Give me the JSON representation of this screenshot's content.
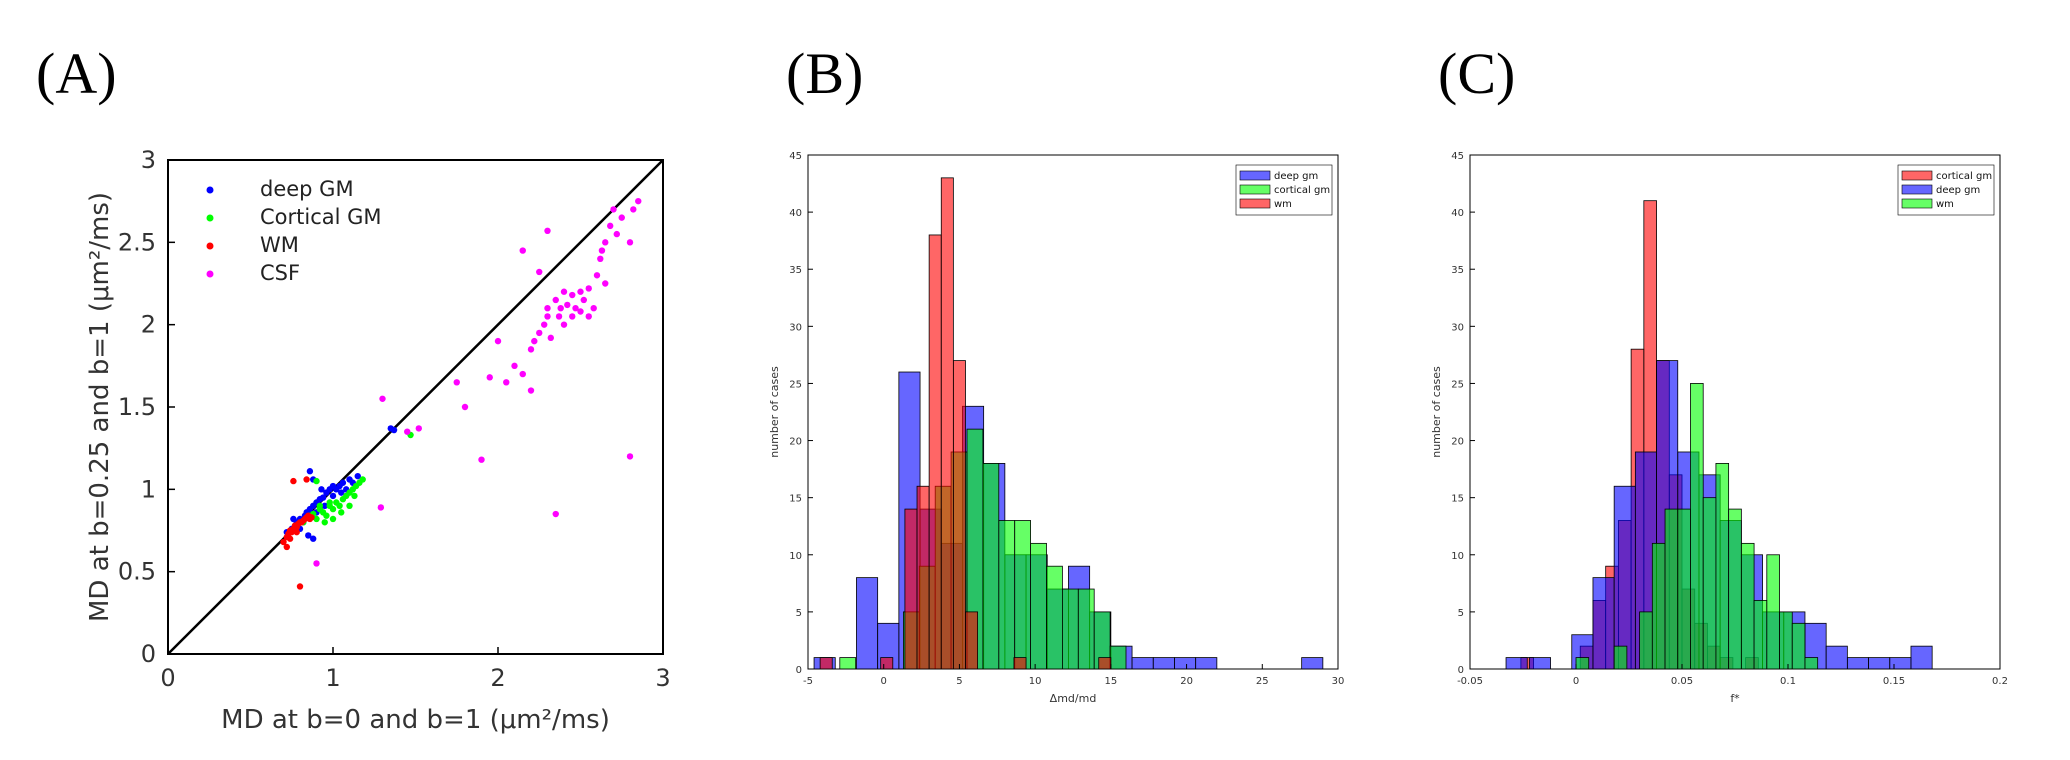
{
  "panels": {
    "a": "(A)",
    "b": "(B)",
    "c": "(C)"
  },
  "colors": {
    "deep": "#0000ff",
    "cortical": "#00ff00",
    "wm": "#ff0000",
    "csf": "#ff00ff"
  },
  "chart_data": [
    {
      "type": "scatter",
      "xlabel": "MD at b=0 and b=1 (μm²/ms)",
      "ylabel": "MD at b=0.25 and b=1 (μm²/ms)",
      "xlim": [
        0,
        3
      ],
      "ylim": [
        0,
        3
      ],
      "xticks": [
        "0",
        "1",
        "2",
        "3"
      ],
      "yticks": [
        "0",
        "0.5",
        "1",
        "1.5",
        "2",
        "2.5",
        "3"
      ],
      "identity_line": true,
      "legend_position": "top-left",
      "series": [
        {
          "name": "deep GM",
          "color": "#0000ff",
          "points": [
            [
              0.72,
              0.74
            ],
            [
              0.75,
              0.76
            ],
            [
              0.78,
              0.8
            ],
            [
              0.8,
              0.82
            ],
            [
              0.82,
              0.8
            ],
            [
              0.84,
              0.86
            ],
            [
              0.86,
              0.88
            ],
            [
              0.88,
              0.9
            ],
            [
              0.9,
              0.92
            ],
            [
              0.92,
              0.94
            ],
            [
              0.94,
              0.95
            ],
            [
              0.96,
              0.98
            ],
            [
              0.98,
              1.0
            ],
            [
              1.0,
              1.02
            ],
            [
              1.02,
              1.0
            ],
            [
              1.04,
              1.02
            ],
            [
              1.06,
              1.04
            ],
            [
              1.08,
              1.0
            ],
            [
              1.1,
              1.06
            ],
            [
              1.12,
              1.04
            ],
            [
              1.15,
              1.08
            ],
            [
              0.86,
              1.11
            ],
            [
              0.88,
              1.06
            ],
            [
              0.85,
              0.72
            ],
            [
              0.88,
              0.7
            ],
            [
              0.8,
              0.76
            ],
            [
              0.9,
              0.86
            ],
            [
              0.95,
              0.9
            ],
            [
              1.0,
              0.96
            ],
            [
              1.05,
              0.98
            ],
            [
              1.35,
              1.37
            ],
            [
              1.37,
              1.36
            ],
            [
              0.76,
              0.82
            ],
            [
              0.83,
              0.84
            ],
            [
              0.93,
              1.0
            ]
          ]
        },
        {
          "name": "Cortical GM",
          "color": "#00ff00",
          "points": [
            [
              0.82,
              0.8
            ],
            [
              0.85,
              0.83
            ],
            [
              0.88,
              0.85
            ],
            [
              0.9,
              0.82
            ],
            [
              0.92,
              0.88
            ],
            [
              0.94,
              0.86
            ],
            [
              0.96,
              0.84
            ],
            [
              0.98,
              0.9
            ],
            [
              1.0,
              0.88
            ],
            [
              1.02,
              0.92
            ],
            [
              1.04,
              0.9
            ],
            [
              1.06,
              0.94
            ],
            [
              1.08,
              0.96
            ],
            [
              1.1,
              0.98
            ],
            [
              1.12,
              1.0
            ],
            [
              1.14,
              1.02
            ],
            [
              1.16,
              1.04
            ],
            [
              1.18,
              1.06
            ],
            [
              0.9,
              1.05
            ],
            [
              0.86,
              0.84
            ],
            [
              0.95,
              0.8
            ],
            [
              1.0,
              0.82
            ],
            [
              1.05,
              0.86
            ],
            [
              1.1,
              0.9
            ],
            [
              1.47,
              1.33
            ],
            [
              0.98,
              0.92
            ],
            [
              0.92,
              0.9
            ],
            [
              1.13,
              0.96
            ]
          ]
        },
        {
          "name": "WM",
          "color": "#ff0000",
          "points": [
            [
              0.7,
              0.68
            ],
            [
              0.72,
              0.71
            ],
            [
              0.73,
              0.73
            ],
            [
              0.74,
              0.75
            ],
            [
              0.75,
              0.74
            ],
            [
              0.76,
              0.76
            ],
            [
              0.77,
              0.78
            ],
            [
              0.78,
              0.77
            ],
            [
              0.79,
              0.79
            ],
            [
              0.8,
              0.8
            ],
            [
              0.81,
              0.8
            ],
            [
              0.82,
              0.81
            ],
            [
              0.83,
              0.82
            ],
            [
              0.84,
              0.83
            ],
            [
              0.85,
              0.84
            ],
            [
              0.86,
              0.82
            ],
            [
              0.87,
              0.83
            ],
            [
              0.76,
              1.05
            ],
            [
              0.84,
              1.06
            ],
            [
              0.8,
              0.41
            ],
            [
              0.72,
              0.65
            ],
            [
              0.74,
              0.7
            ],
            [
              0.78,
              0.74
            ]
          ]
        },
        {
          "name": "CSF",
          "color": "#ff00ff",
          "points": [
            [
              1.3,
              1.55
            ],
            [
              1.45,
              1.35
            ],
            [
              1.52,
              1.37
            ],
            [
              1.29,
              0.89
            ],
            [
              0.9,
              0.55
            ],
            [
              1.75,
              1.65
            ],
            [
              1.8,
              1.5
            ],
            [
              1.9,
              1.18
            ],
            [
              1.95,
              1.68
            ],
            [
              2.05,
              1.65
            ],
            [
              2.1,
              1.75
            ],
            [
              2.15,
              1.7
            ],
            [
              2.2,
              1.6
            ],
            [
              2.2,
              1.85
            ],
            [
              2.22,
              1.9
            ],
            [
              2.25,
              1.95
            ],
            [
              2.28,
              2.0
            ],
            [
              2.3,
              2.05
            ],
            [
              2.3,
              2.1
            ],
            [
              2.32,
              1.92
            ],
            [
              2.35,
              2.15
            ],
            [
              2.37,
              2.05
            ],
            [
              2.38,
              2.1
            ],
            [
              2.4,
              2.0
            ],
            [
              2.4,
              2.2
            ],
            [
              2.42,
              2.12
            ],
            [
              2.45,
              2.05
            ],
            [
              2.45,
              2.18
            ],
            [
              2.47,
              2.1
            ],
            [
              2.5,
              2.08
            ],
            [
              2.5,
              2.2
            ],
            [
              2.52,
              2.15
            ],
            [
              2.55,
              2.22
            ],
            [
              2.55,
              2.05
            ],
            [
              2.58,
              2.1
            ],
            [
              2.6,
              2.3
            ],
            [
              2.62,
              2.4
            ],
            [
              2.63,
              2.45
            ],
            [
              2.65,
              2.25
            ],
            [
              2.65,
              2.5
            ],
            [
              2.68,
              2.6
            ],
            [
              2.7,
              2.7
            ],
            [
              2.72,
              2.55
            ],
            [
              2.75,
              2.65
            ],
            [
              2.8,
              2.5
            ],
            [
              2.82,
              2.7
            ],
            [
              2.85,
              2.75
            ],
            [
              2.35,
              0.85
            ],
            [
              2.8,
              1.2
            ],
            [
              2.3,
              2.57
            ],
            [
              2.25,
              2.32
            ],
            [
              2.15,
              2.45
            ],
            [
              2.0,
              1.9
            ]
          ]
        }
      ]
    },
    {
      "type": "bar",
      "subtype": "histogram",
      "xlabel": "Δmd/md",
      "ylabel": "number of cases",
      "xlim": [
        -5,
        30
      ],
      "ylim": [
        0,
        45
      ],
      "xticks": [
        "-5",
        "0",
        "5",
        "10",
        "15",
        "20",
        "25",
        "30"
      ],
      "yticks": [
        "0",
        "5",
        "10",
        "15",
        "20",
        "25",
        "30",
        "35",
        "40",
        "45"
      ],
      "legend_position": "top-right",
      "series": [
        {
          "name": "deep gm",
          "color": "#0000ff",
          "bin_width": 1.4,
          "bins": [
            [
              -4.6,
              1
            ],
            [
              -1.8,
              8
            ],
            [
              -0.4,
              4
            ],
            [
              1.0,
              26
            ],
            [
              2.4,
              14
            ],
            [
              3.8,
              11
            ],
            [
              5.2,
              23
            ],
            [
              6.6,
              18
            ],
            [
              8.0,
              10
            ],
            [
              9.4,
              10
            ],
            [
              10.8,
              7
            ],
            [
              12.2,
              9
            ],
            [
              13.6,
              5
            ],
            [
              15.0,
              2
            ],
            [
              16.4,
              1
            ],
            [
              17.8,
              1
            ],
            [
              19.2,
              1
            ],
            [
              20.6,
              1
            ],
            [
              27.6,
              1
            ]
          ]
        },
        {
          "name": "cortical gm",
          "color": "#00ff00",
          "bin_width": 1.05,
          "bins": [
            [
              -2.9,
              1
            ],
            [
              1.3,
              5
            ],
            [
              2.35,
              9
            ],
            [
              3.4,
              16
            ],
            [
              4.45,
              19
            ],
            [
              5.5,
              21
            ],
            [
              6.55,
              18
            ],
            [
              7.6,
              13
            ],
            [
              8.65,
              13
            ],
            [
              9.7,
              11
            ],
            [
              10.75,
              9
            ],
            [
              11.8,
              7
            ],
            [
              12.85,
              7
            ],
            [
              13.9,
              5
            ],
            [
              14.95,
              2
            ]
          ]
        },
        {
          "name": "wm",
          "color": "#ff0000",
          "bin_width": 0.8,
          "bins": [
            [
              -4.2,
              1
            ],
            [
              -0.2,
              1
            ],
            [
              1.4,
              14
            ],
            [
              2.2,
              16
            ],
            [
              3.0,
              38
            ],
            [
              3.8,
              43
            ],
            [
              4.6,
              27
            ],
            [
              5.4,
              5
            ],
            [
              8.6,
              1
            ],
            [
              14.2,
              1
            ]
          ]
        }
      ]
    },
    {
      "type": "bar",
      "subtype": "histogram",
      "xlabel": "f*",
      "ylabel": "number of cases",
      "xlim": [
        -0.05,
        0.2
      ],
      "ylim": [
        0,
        45
      ],
      "xticks": [
        "-0.05",
        "0",
        "0.05",
        "0.1",
        "0.15",
        "0.2"
      ],
      "yticks": [
        "0",
        "5",
        "10",
        "15",
        "20",
        "25",
        "30",
        "35",
        "40",
        "45"
      ],
      "legend_position": "top-right",
      "series": [
        {
          "name": "cortical gm",
          "color": "#ff0000",
          "bin_width": 0.006,
          "bins": [
            [
              -0.026,
              1
            ],
            [
              0.002,
              2
            ],
            [
              0.008,
              6
            ],
            [
              0.014,
              9
            ],
            [
              0.02,
              13
            ],
            [
              0.026,
              28
            ],
            [
              0.032,
              41
            ],
            [
              0.038,
              27
            ],
            [
              0.044,
              17
            ],
            [
              0.05,
              7
            ],
            [
              0.056,
              4
            ],
            [
              0.062,
              2
            ],
            [
              0.068,
              1
            ],
            [
              0.08,
              1
            ]
          ]
        },
        {
          "name": "deep gm",
          "color": "#0000ff",
          "bin_width": 0.01,
          "bins": [
            [
              -0.033,
              1
            ],
            [
              -0.022,
              1
            ],
            [
              -0.002,
              3
            ],
            [
              0.008,
              8
            ],
            [
              0.018,
              16
            ],
            [
              0.028,
              19
            ],
            [
              0.038,
              27
            ],
            [
              0.048,
              19
            ],
            [
              0.058,
              17
            ],
            [
              0.068,
              13
            ],
            [
              0.078,
              10
            ],
            [
              0.088,
              5
            ],
            [
              0.098,
              5
            ],
            [
              0.108,
              4
            ],
            [
              0.118,
              2
            ],
            [
              0.128,
              1
            ],
            [
              0.138,
              1
            ],
            [
              0.148,
              1
            ],
            [
              0.158,
              2
            ]
          ]
        },
        {
          "name": "wm",
          "color": "#00ff00",
          "bin_width": 0.006,
          "bins": [
            [
              0.0,
              1
            ],
            [
              0.018,
              2
            ],
            [
              0.03,
              5
            ],
            [
              0.036,
              11
            ],
            [
              0.042,
              14
            ],
            [
              0.048,
              14
            ],
            [
              0.054,
              25
            ],
            [
              0.06,
              15
            ],
            [
              0.066,
              18
            ],
            [
              0.072,
              14
            ],
            [
              0.078,
              11
            ],
            [
              0.084,
              6
            ],
            [
              0.09,
              10
            ],
            [
              0.096,
              5
            ],
            [
              0.102,
              4
            ],
            [
              0.108,
              1
            ]
          ]
        }
      ]
    }
  ]
}
